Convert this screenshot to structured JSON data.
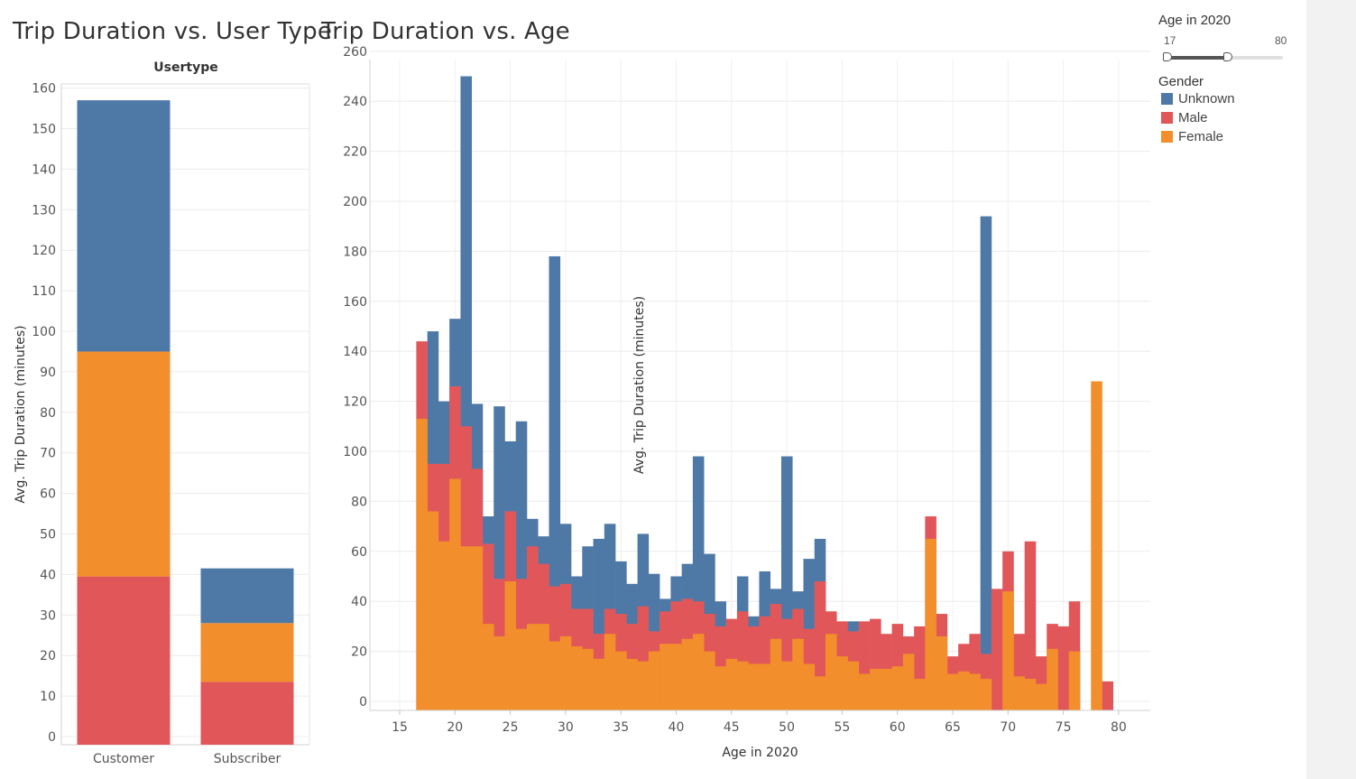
{
  "titles": {
    "left": "Trip Duration vs. User Type",
    "right": "Trip Duration vs. Age"
  },
  "colors": {
    "Unknown": "#4e79a7",
    "Male": "#e15759",
    "Female": "#f28e2b"
  },
  "legend": {
    "age_title": "Age in 2020",
    "age_min": "17",
    "age_max": "80",
    "age_range_min": 17,
    "age_range_max": 80,
    "age_selected_min": 17,
    "age_selected_max": 50,
    "gender_title": "Gender",
    "gender_items": [
      {
        "label": "Unknown",
        "color": "#4e79a7"
      },
      {
        "label": "Male",
        "color": "#e15759"
      },
      {
        "label": "Female",
        "color": "#f28e2b"
      }
    ]
  },
  "chart_data": [
    {
      "type": "bar",
      "stacked": true,
      "title": "Trip Duration vs. User Type",
      "column_header": "Usertype",
      "ylabel": "Avg. Trip Duration (minutes)",
      "ylim": [
        0,
        165
      ],
      "yticks": [
        0,
        10,
        20,
        30,
        40,
        50,
        60,
        70,
        80,
        90,
        100,
        110,
        120,
        130,
        140,
        150,
        160
      ],
      "categories": [
        "Customer",
        "Subscriber"
      ],
      "stack_order": [
        "Male",
        "Female",
        "Unknown"
      ],
      "series": [
        {
          "name": "Male",
          "values": [
            39.5,
            13.5
          ]
        },
        {
          "name": "Female",
          "values": [
            55.5,
            14.5
          ]
        },
        {
          "name": "Unknown",
          "values": [
            62,
            13.5
          ]
        }
      ],
      "grid": true
    },
    {
      "type": "bar",
      "overlapping": true,
      "title": "Trip Duration vs. Age",
      "xlabel": "Age in 2020",
      "ylabel": "Avg. Trip Duration (minutes)",
      "xlim": [
        12.5,
        82.5
      ],
      "xticks": [
        15,
        20,
        25,
        30,
        35,
        40,
        45,
        50,
        55,
        60,
        65,
        70,
        75,
        80
      ],
      "ylim": [
        -4,
        263
      ],
      "yticks": [
        0,
        20,
        40,
        60,
        80,
        100,
        120,
        140,
        160,
        180,
        200,
        220,
        240,
        260
      ],
      "grid": true,
      "x": [
        17,
        18,
        19,
        20,
        21,
        22,
        23,
        24,
        25,
        26,
        27,
        28,
        29,
        30,
        31,
        32,
        33,
        34,
        35,
        36,
        37,
        38,
        39,
        40,
        41,
        42,
        43,
        44,
        45,
        46,
        47,
        48,
        49,
        50,
        51,
        52,
        53,
        54,
        55,
        56,
        57,
        58,
        59,
        60,
        61,
        62,
        63,
        64,
        65,
        66,
        67,
        68,
        69,
        70,
        71,
        72,
        73,
        74,
        75,
        76,
        77,
        78,
        79
      ],
      "series": [
        {
          "name": "Unknown",
          "values": [
            0,
            148,
            120,
            153,
            250,
            119,
            74,
            118,
            104,
            112,
            73,
            66,
            178,
            71,
            50,
            62,
            65,
            71,
            56,
            47,
            67,
            51,
            41,
            50,
            55,
            98,
            59,
            40,
            29,
            50,
            34,
            52,
            45,
            98,
            44,
            57,
            65,
            25,
            31,
            32,
            0,
            0,
            0,
            0,
            0,
            0,
            0,
            0,
            0,
            0,
            0,
            194,
            0,
            0,
            0,
            0,
            0,
            0,
            0,
            0,
            0,
            0,
            0
          ]
        },
        {
          "name": "Male",
          "values": [
            144,
            95,
            95,
            126,
            110,
            93,
            63,
            49,
            76,
            49,
            62,
            55,
            46,
            47,
            37,
            37,
            27,
            37,
            35,
            31,
            38,
            28,
            36,
            40,
            41,
            40,
            35,
            30,
            33,
            36,
            30,
            34,
            39,
            33,
            37,
            29,
            48,
            36,
            32,
            28,
            32,
            33,
            27,
            31,
            26,
            30,
            74,
            35,
            18,
            23,
            27,
            19,
            45,
            60,
            27,
            64,
            18,
            31,
            30,
            40,
            0,
            0,
            8
          ]
        },
        {
          "name": "Female",
          "values": [
            113,
            76,
            64,
            89,
            62,
            62,
            31,
            26,
            48,
            29,
            31,
            31,
            24,
            26,
            22,
            21,
            17,
            27,
            20,
            17,
            16,
            20,
            23,
            23,
            25,
            27,
            20,
            14,
            17,
            16,
            15,
            15,
            25,
            16,
            25,
            15,
            10,
            27,
            18,
            16,
            11,
            13,
            13,
            14,
            19,
            9,
            65,
            26,
            11,
            12,
            11,
            9,
            0,
            44,
            10,
            9,
            7,
            21,
            0,
            20,
            0,
            128,
            0
          ]
        }
      ]
    }
  ]
}
